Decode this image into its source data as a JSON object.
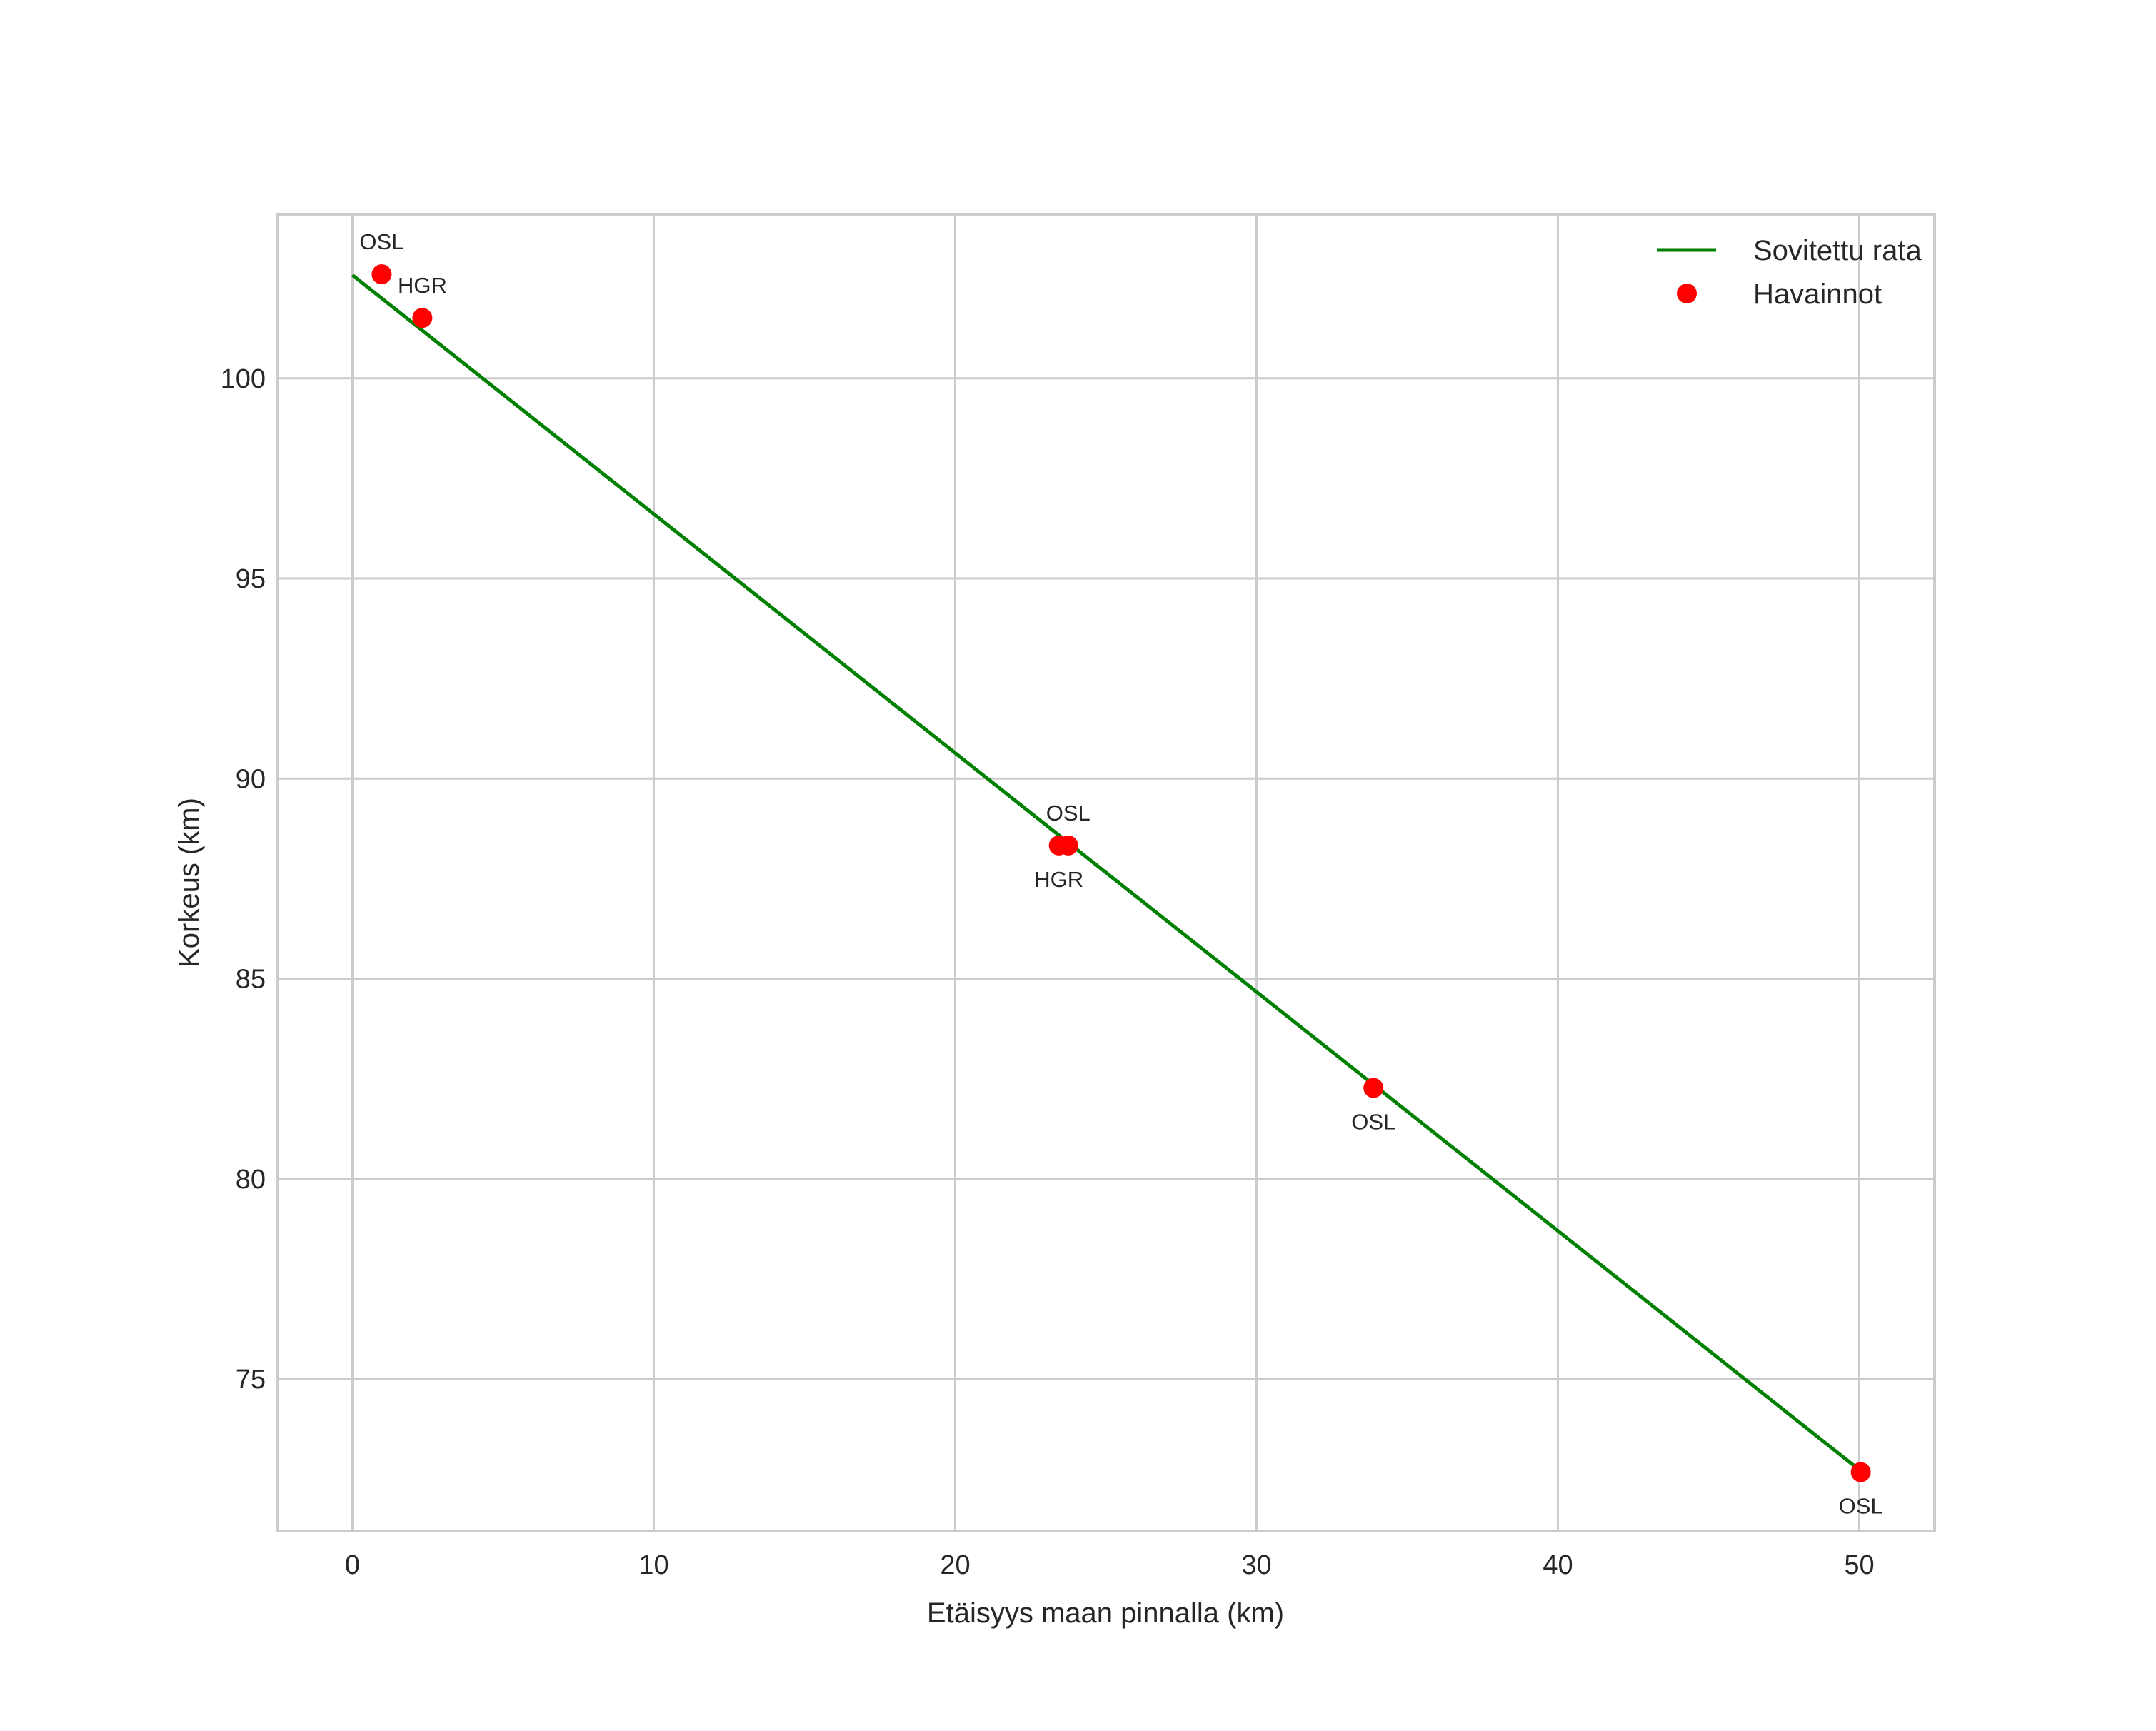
{
  "chart_data": {
    "type": "line+scatter",
    "title": "",
    "xlabel": "Etäisyys maan pinnalla (km)",
    "ylabel": "Korkeus (km)",
    "xlim": [
      -2.5,
      52.5
    ],
    "ylim": [
      71.2,
      104.1
    ],
    "xticks": [
      0,
      10,
      20,
      30,
      40,
      50
    ],
    "yticks": [
      75,
      80,
      85,
      90,
      95,
      100
    ],
    "grid": true,
    "legend_position": "upper right",
    "series": [
      {
        "name": "Sovitettu rata",
        "kind": "line",
        "color": "#008000",
        "x": [
          0,
          50
        ],
        "y": [
          102.58,
          72.73
        ]
      },
      {
        "name": "Havainnot",
        "kind": "scatter",
        "color": "#ff0000",
        "points": [
          {
            "x": 0.97,
            "y": 102.6,
            "label": "OSL",
            "label_pos": "above"
          },
          {
            "x": 2.32,
            "y": 101.51,
            "label": "HGR",
            "label_pos": "above"
          },
          {
            "x": 23.75,
            "y": 88.33,
            "label": "OSL",
            "label_pos": "above"
          },
          {
            "x": 23.44,
            "y": 88.33,
            "label": "HGR",
            "label_pos": "below"
          },
          {
            "x": 33.88,
            "y": 82.27,
            "label": "OSL",
            "label_pos": "below"
          },
          {
            "x": 50.05,
            "y": 72.67,
            "label": "OSL",
            "label_pos": "below"
          }
        ]
      }
    ]
  },
  "legend": {
    "items": [
      {
        "label": "Sovitettu rata",
        "marker": "line",
        "color": "#008000"
      },
      {
        "label": "Havainnot",
        "marker": "dot",
        "color": "#ff0000"
      }
    ]
  }
}
